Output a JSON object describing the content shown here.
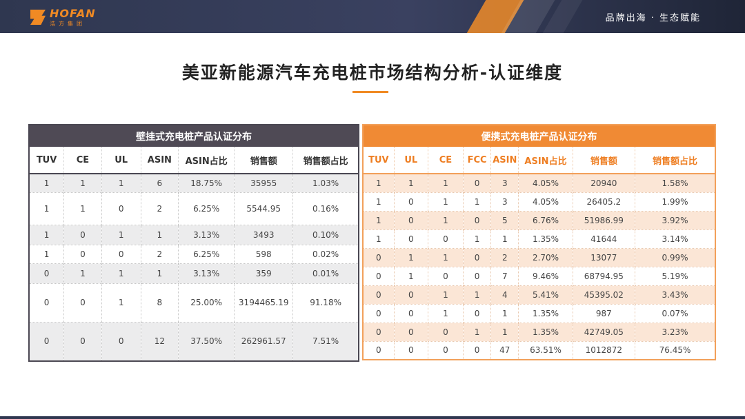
{
  "header": {
    "logo_name": "HOFAN",
    "logo_sub": "浩方集团",
    "slogan": "品牌出海 · 生态赋能"
  },
  "title": "美亚新能源汽车充电桩市场结构分析-认证维度",
  "wall_table": {
    "caption": "壁挂式充电桩产品认证分布",
    "headers": [
      "TUV",
      "CE",
      "UL",
      "ASIN",
      "ASIN占比",
      "销售额",
      "销售额占比"
    ],
    "rows": [
      [
        "1",
        "1",
        "1",
        "6",
        "18.75%",
        "35955",
        "1.03%"
      ],
      [
        "1",
        "1",
        "0",
        "2",
        "6.25%",
        "5544.95",
        "0.16%"
      ],
      [
        "1",
        "0",
        "1",
        "1",
        "3.13%",
        "3493",
        "0.10%"
      ],
      [
        "1",
        "0",
        "0",
        "2",
        "6.25%",
        "598",
        "0.02%"
      ],
      [
        "0",
        "1",
        "1",
        "1",
        "3.13%",
        "359",
        "0.01%"
      ],
      [
        "0",
        "0",
        "1",
        "8",
        "25.00%",
        "3194465.19",
        "91.18%"
      ],
      [
        "0",
        "0",
        "0",
        "12",
        "37.50%",
        "262961.57",
        "7.51%"
      ]
    ]
  },
  "portable_table": {
    "caption": "便携式充电桩产品认证分布",
    "headers": [
      "TUV",
      "UL",
      "CE",
      "FCC",
      "ASIN",
      "ASIN占比",
      "销售额",
      "销售额占比"
    ],
    "rows": [
      [
        "1",
        "1",
        "1",
        "0",
        "3",
        "4.05%",
        "20940",
        "1.58%"
      ],
      [
        "1",
        "0",
        "1",
        "1",
        "3",
        "4.05%",
        "26405.2",
        "1.99%"
      ],
      [
        "1",
        "0",
        "1",
        "0",
        "5",
        "6.76%",
        "51986.99",
        "3.92%"
      ],
      [
        "1",
        "0",
        "0",
        "1",
        "1",
        "1.35%",
        "41644",
        "3.14%"
      ],
      [
        "0",
        "1",
        "1",
        "0",
        "2",
        "2.70%",
        "13077",
        "0.99%"
      ],
      [
        "0",
        "1",
        "0",
        "0",
        "7",
        "9.46%",
        "68794.95",
        "5.19%"
      ],
      [
        "0",
        "0",
        "1",
        "1",
        "4",
        "5.41%",
        "45395.02",
        "3.43%"
      ],
      [
        "0",
        "0",
        "1",
        "0",
        "1",
        "1.35%",
        "987",
        "0.07%"
      ],
      [
        "0",
        "0",
        "0",
        "1",
        "1",
        "1.35%",
        "42749.05",
        "3.23%"
      ],
      [
        "0",
        "0",
        "0",
        "0",
        "47",
        "63.51%",
        "1012872",
        "76.45%"
      ]
    ]
  }
}
